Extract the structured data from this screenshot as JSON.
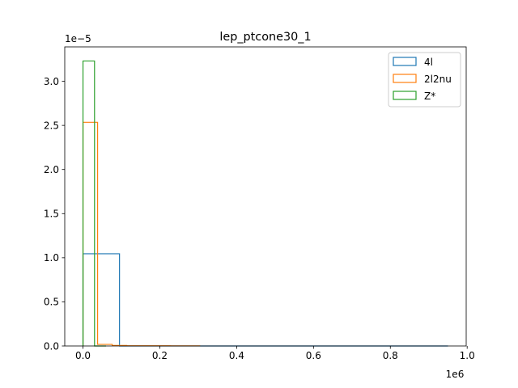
{
  "chart_data": {
    "type": "histogram",
    "title": "lep_ptcone30_1",
    "xlabel": "",
    "ylabel": "",
    "x_offset_label": "1e6",
    "y_offset_label": "1e−5",
    "x_multiplier": 1000000,
    "y_multiplier": 1e-05,
    "xlim": [
      -47500,
      997500
    ],
    "ylim": [
      0,
      3.39
    ],
    "x_ticks": [
      0,
      200000,
      400000,
      600000,
      800000,
      1000000
    ],
    "x_tick_labels": [
      "0.0",
      "0.2",
      "0.4",
      "0.6",
      "0.8",
      "1.0"
    ],
    "y_ticks": [
      0,
      0.5,
      1.0,
      1.5,
      2.0,
      2.5,
      3.0
    ],
    "y_tick_labels": [
      "0.0",
      "0.5",
      "1.0",
      "1.5",
      "2.0",
      "2.5",
      "3.0"
    ],
    "grid": false,
    "legend_position": "top-right",
    "series": [
      {
        "name": "4l",
        "color": "#1f77b4",
        "bin_edges": [
          0,
          95000,
          190000,
          285000,
          380000,
          475000,
          570000,
          665000,
          760000,
          855000,
          950000
        ],
        "values": [
          1.045,
          0,
          0,
          0,
          0,
          0,
          0,
          0,
          0,
          0
        ]
      },
      {
        "name": "2l2nu",
        "color": "#ff7f0e",
        "bin_edges": [
          0,
          38000,
          76000,
          114000,
          152000,
          190000,
          228000,
          266000,
          304000
        ],
        "values": [
          2.535,
          0.018,
          0.006,
          0.003,
          0.002,
          0.002,
          0.001,
          0.001
        ]
      },
      {
        "name": "Z*",
        "color": "#2ca02c",
        "bin_edges": [
          0,
          30000,
          60000
        ],
        "values": [
          3.23,
          0
        ]
      }
    ]
  }
}
